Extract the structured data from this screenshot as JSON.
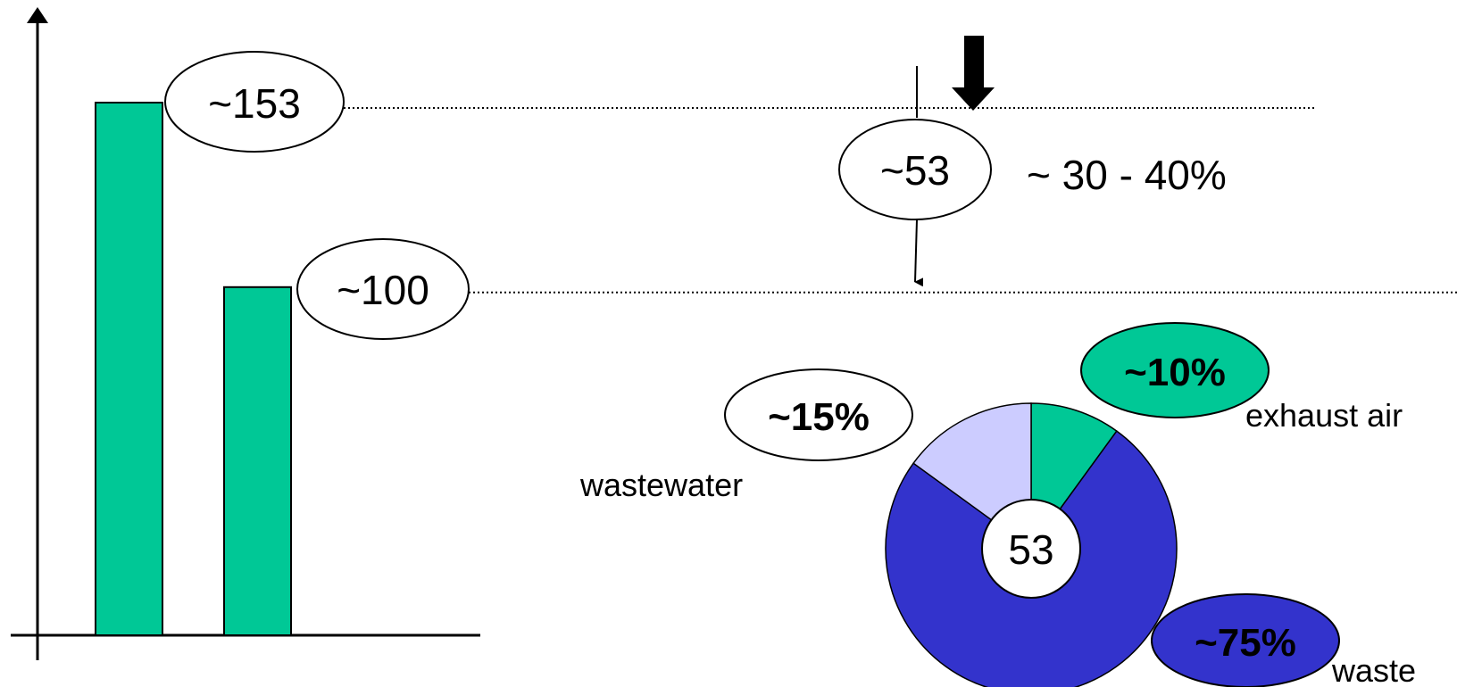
{
  "chart_data": [
    {
      "type": "bar",
      "categories": [
        "",
        ""
      ],
      "values": [
        153,
        100
      ],
      "data_labels": [
        "~153",
        "~100"
      ],
      "colors": {
        "bar": "#00C896"
      }
    },
    {
      "type": "pie",
      "center_label": "53",
      "slices": [
        {
          "label": "exhaust air",
          "value": 10,
          "badge": "~10%",
          "color": "#00C896"
        },
        {
          "label": "waste",
          "value": 75,
          "badge": "~75%",
          "color": "#3333CC"
        },
        {
          "label": "wastewater",
          "value": 15,
          "badge": "~15%",
          "color": "#CCCCFF"
        }
      ]
    }
  ],
  "difference": {
    "label": "~53",
    "note": "~ 30 - 40%"
  }
}
